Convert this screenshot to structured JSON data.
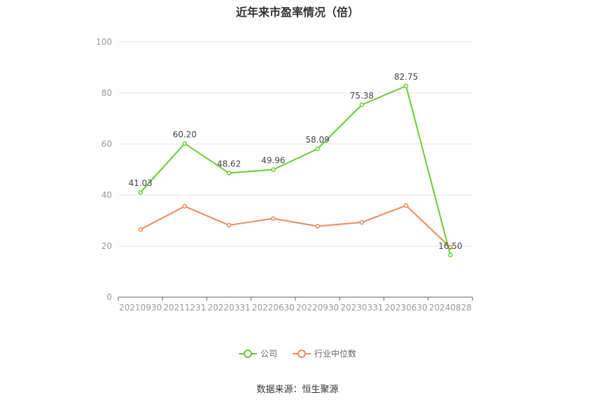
{
  "title": "近年来市盈率情况（倍）",
  "source": "数据来源：恒生聚源",
  "legend": {
    "company": "公司",
    "industry": "行业中位数"
  },
  "colors": {
    "company": "#66cc33",
    "industry": "#f0885a",
    "grid": "#e6e6ee",
    "axis": "#666666"
  },
  "chart_data": {
    "type": "line",
    "title": "近年来市盈率情况（倍）",
    "xlabel": "",
    "ylabel": "",
    "ylim": [
      0,
      100
    ],
    "yticks": [
      0,
      20,
      40,
      60,
      80,
      100
    ],
    "grid": true,
    "legend_position": "bottom",
    "categories": [
      "20210930",
      "20211231",
      "20220331",
      "20220630",
      "20220930",
      "20230331",
      "20230630",
      "20240828"
    ],
    "series": [
      {
        "name": "公司",
        "values": [
          41.03,
          60.2,
          48.62,
          49.96,
          58.09,
          75.38,
          82.75,
          16.5
        ],
        "labels": [
          "41.03",
          "60.20",
          "48.62",
          "49.96",
          "58.09",
          "75.38",
          "82.75",
          "16.50"
        ]
      },
      {
        "name": "行业中位数",
        "values": [
          26.5,
          35.6,
          28.2,
          30.8,
          27.8,
          29.3,
          35.9,
          19.5
        ]
      }
    ]
  }
}
